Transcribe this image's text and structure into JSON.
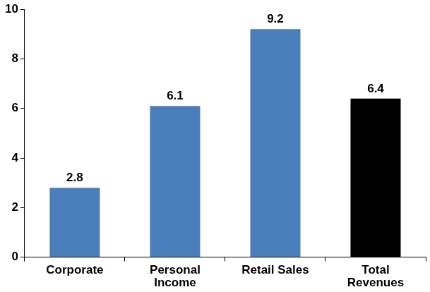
{
  "chart_data": {
    "type": "bar",
    "categories": [
      "Corporate",
      "Personal\nIncome",
      "Retail Sales",
      "Total\nRevenues"
    ],
    "values": [
      2.8,
      6.1,
      9.2,
      6.4
    ],
    "colors": [
      "#4a7ebb",
      "#4a7ebb",
      "#4a7ebb",
      "#000000"
    ],
    "ylim": [
      0,
      10
    ],
    "yticks": [
      0,
      2,
      4,
      6,
      8,
      10
    ],
    "grid": false,
    "data_labels": true
  }
}
